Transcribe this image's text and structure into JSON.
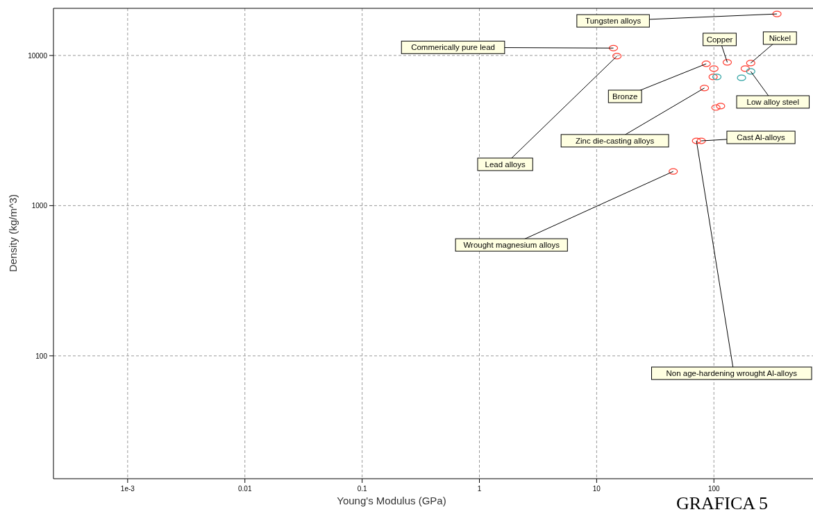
{
  "chart_data": {
    "type": "scatter",
    "xlabel": "Young's Modulus (GPa)",
    "ylabel": "Density (kg/m^3)",
    "log": "xy",
    "grid": true,
    "marker": "circle",
    "xlim": [
      0.000233,
      700
    ],
    "ylim": [
      15.2,
      20600
    ],
    "xticks": [
      {
        "value": 0.001,
        "label": "1e-3"
      },
      0.01,
      0.1,
      1,
      10,
      100
    ],
    "yticks": [
      100,
      1000,
      10000
    ],
    "series": [
      {
        "color": "#ff3b2f",
        "x": [
          345,
          13.9,
          14.9,
          130,
          86,
          100,
          206,
          185,
          98.5,
          83,
          104,
          114,
          78,
          71,
          45
        ],
        "values": [
          18900,
          11200,
          9900,
          9000,
          8800,
          8170,
          8900,
          8170,
          7200,
          6070,
          4500,
          4600,
          2700,
          2700,
          1690
        ]
      },
      {
        "color": "#2aa0a0",
        "x": [
          106,
          172,
          206
        ],
        "values": [
          7200,
          7100,
          7830
        ]
      }
    ],
    "annotations": [
      {
        "text": "Tungsten alloys",
        "x": 345,
        "y": 18900
      },
      {
        "text": "Commerically pure lead",
        "x": 13.9,
        "y": 11200
      },
      {
        "text": "Copper",
        "x": 130,
        "y": 9000
      },
      {
        "text": "Nickel",
        "x": 206,
        "y": 8900
      },
      {
        "text": "Bronze",
        "x": 86,
        "y": 8800
      },
      {
        "text": "Low alloy steel",
        "x": 206,
        "y": 7830
      },
      {
        "text": "Zinc die-casting alloys",
        "x": 83,
        "y": 6070
      },
      {
        "text": "Cast Al-alloys",
        "x": 78,
        "y": 2700
      },
      {
        "text": "Lead alloys",
        "x": 14.9,
        "y": 9900
      },
      {
        "text": "Wrought magnesium alloys",
        "x": 45,
        "y": 1690
      },
      {
        "text": "Non age-hardening wrought Al-alloys",
        "x": 71,
        "y": 2700
      },
      "GRAFICA 5"
    ]
  }
}
